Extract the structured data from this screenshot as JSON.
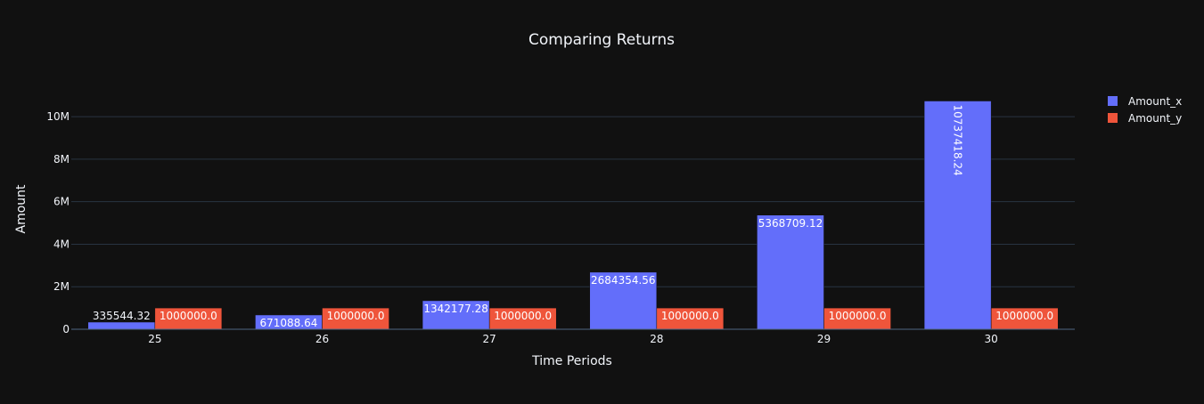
{
  "chart_data": {
    "type": "bar",
    "title": "Comparing Returns",
    "xlabel": "Time Periods",
    "ylabel": "Amount",
    "categories": [
      "25",
      "26",
      "27",
      "28",
      "29",
      "30"
    ],
    "series": [
      {
        "name": "Amount_x",
        "color": "#636efa",
        "values": [
          335544.32,
          671088.64,
          1342177.28,
          2684354.56,
          5368709.12,
          10737418.24
        ],
        "labels": [
          "335544.32",
          "671088.64",
          "1342177.28",
          "2684354.56",
          "5368709.12",
          "10737418.24"
        ]
      },
      {
        "name": "Amount_y",
        "color": "#ef553b",
        "values": [
          1000000.0,
          1000000.0,
          1000000.0,
          1000000.0,
          1000000.0,
          1000000.0
        ],
        "labels": [
          "1000000.0",
          "1000000.0",
          "1000000.0",
          "1000000.0",
          "1000000.0",
          "1000000.0"
        ]
      }
    ],
    "yticks": [
      0,
      2000000,
      4000000,
      6000000,
      8000000,
      10000000
    ],
    "ytick_labels": [
      "0",
      "2M",
      "4M",
      "6M",
      "8M",
      "10M"
    ],
    "ylim": [
      0,
      11302545.5
    ],
    "grid": true,
    "legend_position": "top-right",
    "background": "#111111",
    "gridline_color": "#283442",
    "text_color": "#f2f5fa"
  }
}
